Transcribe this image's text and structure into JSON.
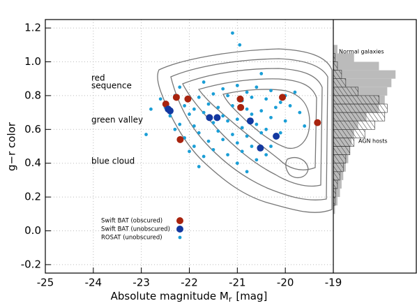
{
  "chart_data": [
    {
      "type": "scatter",
      "x_label": "Absolute magnitude  M",
      "x_label_sub": "r",
      "x_label_unit": "[mag]",
      "y_label": "g−r color",
      "annotations": [
        "red",
        "sequence",
        "green valley",
        "blue cloud"
      ],
      "xlim": [
        -25,
        -19
      ],
      "xticks": [
        -25,
        -24,
        -23,
        -22,
        -21,
        -20,
        -19
      ],
      "ylim": [
        -0.25,
        1.25
      ],
      "yticks": [
        -0.2,
        {
          "value": 0,
          "label": "0.0"
        },
        0.2,
        0.4,
        0.6,
        0.8,
        {
          "value": 1,
          "label": "1.0"
        },
        1.2
      ],
      "grid": true,
      "series": [
        {
          "name": "Swift BAT (obscured)",
          "color": "#a8230e",
          "size": 5,
          "x": [
            -22.49,
            -22.27,
            -22.03,
            -22.19,
            -20.94,
            -20.93,
            -20.06,
            -19.33
          ],
          "values": [
            0.75,
            0.79,
            0.78,
            0.54,
            0.78,
            0.73,
            0.79,
            0.64
          ]
        },
        {
          "name": "Swift BAT (unobscured)",
          "color": "#1338a0",
          "size": 5,
          "x": [
            -22.44,
            -22.4,
            -21.58,
            -21.42,
            -20.73,
            -20.52,
            -20.19
          ],
          "values": [
            0.72,
            0.71,
            0.67,
            0.67,
            0.65,
            0.49,
            0.56
          ]
        },
        {
          "name": "ROSAT (unobscured)",
          "color": "#1a9ed6",
          "size": 2.4,
          "x": [
            -21.1,
            -20.95,
            -20.5,
            -22.2,
            -21.7,
            -21.3,
            -21.0,
            -20.8,
            -20.6,
            -20.3,
            -20.0,
            -19.8,
            -22.6,
            -22.3,
            -22.0,
            -21.8,
            -21.5,
            -21.2,
            -20.9,
            -20.7,
            -20.4,
            -20.1,
            -19.9,
            -22.8,
            -22.5,
            -22.1,
            -21.9,
            -21.6,
            -21.4,
            -21.1,
            -20.8,
            -20.5,
            -20.2,
            -19.7,
            -22.4,
            -22.0,
            -21.7,
            -21.3,
            -21.0,
            -20.7,
            -20.3,
            -20.0,
            -19.6,
            -22.2,
            -21.9,
            -21.5,
            -21.2,
            -20.9,
            -20.6,
            -20.4,
            -20.1,
            -21.8,
            -21.4,
            -21.1,
            -20.8,
            -20.5,
            -20.2,
            -21.6,
            -21.3,
            -21.0,
            -20.7,
            -22.1,
            -21.9,
            -21.5,
            -20.9,
            -20.3,
            -21.2,
            -20.6,
            -22.9,
            -21.7,
            -21.0,
            -20.4,
            -22.3,
            -21.8,
            -20.8,
            -22.0
          ],
          "values": [
            1.17,
            1.1,
            0.93,
            0.85,
            0.88,
            0.84,
            0.86,
            0.82,
            0.85,
            0.83,
            0.8,
            0.82,
            0.78,
            0.8,
            0.78,
            0.79,
            0.81,
            0.8,
            0.77,
            0.79,
            0.78,
            0.76,
            0.74,
            0.72,
            0.73,
            0.74,
            0.72,
            0.75,
            0.73,
            0.74,
            0.72,
            0.71,
            0.73,
            0.7,
            0.68,
            0.69,
            0.7,
            0.68,
            0.66,
            0.69,
            0.67,
            0.65,
            0.62,
            0.63,
            0.62,
            0.64,
            0.65,
            0.61,
            0.63,
            0.6,
            0.58,
            0.58,
            0.59,
            0.57,
            0.56,
            0.58,
            0.55,
            0.53,
            0.54,
            0.52,
            0.5,
            0.55,
            0.5,
            0.48,
            0.47,
            0.5,
            0.45,
            0.42,
            0.57,
            0.44,
            0.4,
            0.45,
            0.6,
            0.38,
            0.35,
            0.47
          ]
        }
      ]
    },
    {
      "type": "histogram",
      "orientation": "horizontal",
      "xlim": [
        0,
        1
      ],
      "ylim": [
        -0.25,
        1.25
      ],
      "bins": [
        0.1,
        0.15,
        0.2,
        0.25,
        0.3,
        0.35,
        0.4,
        0.45,
        0.5,
        0.55,
        0.6,
        0.65,
        0.7,
        0.75,
        0.8,
        0.85,
        0.9,
        0.95,
        1.0,
        1.05,
        1.1
      ],
      "series": [
        {
          "name": "Normal galaxies",
          "color": "#bbbbbb",
          "fill": "solid",
          "values": [
            0.02,
            0.05,
            0.08,
            0.1,
            0.12,
            0.15,
            0.18,
            0.2,
            0.22,
            0.25,
            0.3,
            0.4,
            0.55,
            0.62,
            0.65,
            0.7,
            0.75,
            0.55,
            0.25,
            0.05
          ]
        },
        {
          "name": "AGN hosts",
          "color": "#333333",
          "fill": "hatch",
          "values": [
            0,
            0.02,
            0.03,
            0.05,
            0.08,
            0.12,
            0.15,
            0.2,
            0.25,
            0.38,
            0.5,
            0.62,
            0.65,
            0.55,
            0.3,
            0.15,
            0.1,
            0.05,
            0.02,
            0
          ]
        }
      ]
    }
  ]
}
